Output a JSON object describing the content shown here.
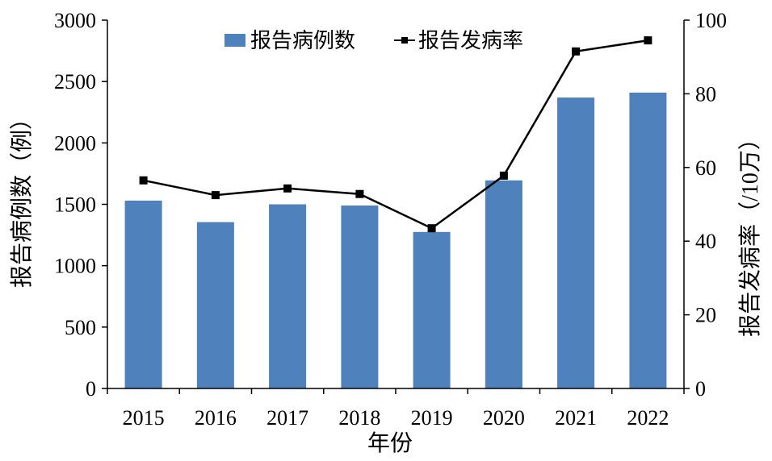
{
  "chart_data": {
    "type": "bar+line",
    "categories": [
      "2015",
      "2016",
      "2017",
      "2018",
      "2019",
      "2020",
      "2021",
      "2022"
    ],
    "series": [
      {
        "name": "报告病例数",
        "type": "bar",
        "axis": "left",
        "color": "#4f81bd",
        "values": [
          1530,
          1355,
          1500,
          1490,
          1275,
          1695,
          2370,
          2410
        ]
      },
      {
        "name": "报告发病率",
        "type": "line",
        "axis": "right",
        "color": "#000000",
        "marker": "square",
        "values": [
          56.5,
          52.5,
          54.3,
          52.8,
          43.5,
          57.8,
          91.5,
          94.5
        ]
      }
    ],
    "xlabel": "年份",
    "ylabel": "报告病例数（例）",
    "y2label": "报告发病率（/10万）",
    "ylim": [
      0,
      3000
    ],
    "y2lim": [
      0,
      100
    ],
    "yticks": [
      "0",
      "500",
      "1000",
      "1500",
      "2000",
      "2500",
      "3000"
    ],
    "y2ticks": [
      "0",
      "20",
      "40",
      "60",
      "80",
      "100"
    ],
    "legend": {
      "position": "top-center"
    },
    "grid": false
  }
}
